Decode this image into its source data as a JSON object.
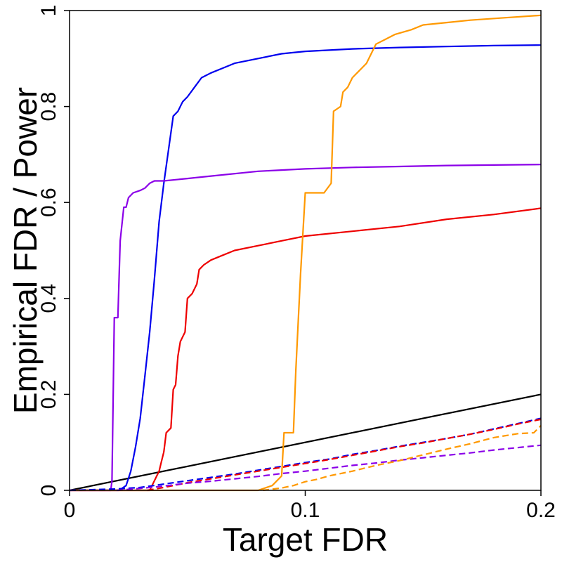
{
  "chart_data": {
    "type": "line",
    "xlabel": "Target FDR",
    "ylabel": "Empirical FDR / Power",
    "xlim": [
      0,
      0.2
    ],
    "ylim": [
      0,
      1
    ],
    "x_ticks": [
      {
        "value": 0,
        "label": "0"
      },
      {
        "value": 0.1,
        "label": "0.1"
      },
      {
        "value": 0.2,
        "label": "0.2"
      }
    ],
    "y_ticks": [
      {
        "value": 0,
        "label": "0"
      },
      {
        "value": 0.2,
        "label": "0.2"
      },
      {
        "value": 0.4,
        "label": "0.4"
      },
      {
        "value": 0.6,
        "label": "0.6"
      },
      {
        "value": 0.8,
        "label": "0.8"
      },
      {
        "value": 1,
        "label": "1"
      }
    ],
    "grid": false,
    "series": [
      {
        "color": "#000000",
        "style": "solid",
        "points": [
          [
            0,
            0
          ],
          [
            0.2,
            0.2
          ]
        ]
      },
      {
        "color": "#0000ee",
        "style": "solid",
        "points": [
          [
            0,
            0
          ],
          [
            0.021,
            0.0
          ],
          [
            0.024,
            0.01
          ],
          [
            0.026,
            0.04
          ],
          [
            0.028,
            0.09
          ],
          [
            0.03,
            0.15
          ],
          [
            0.032,
            0.24
          ],
          [
            0.034,
            0.33
          ],
          [
            0.036,
            0.44
          ],
          [
            0.038,
            0.56
          ],
          [
            0.04,
            0.64
          ],
          [
            0.042,
            0.71
          ],
          [
            0.044,
            0.78
          ],
          [
            0.046,
            0.79
          ],
          [
            0.048,
            0.81
          ],
          [
            0.05,
            0.82
          ],
          [
            0.053,
            0.84
          ],
          [
            0.056,
            0.86
          ],
          [
            0.06,
            0.87
          ],
          [
            0.065,
            0.88
          ],
          [
            0.07,
            0.89
          ],
          [
            0.08,
            0.9
          ],
          [
            0.09,
            0.91
          ],
          [
            0.1,
            0.915
          ],
          [
            0.12,
            0.92
          ],
          [
            0.14,
            0.923
          ],
          [
            0.16,
            0.925
          ],
          [
            0.18,
            0.927
          ],
          [
            0.2,
            0.928
          ]
        ]
      },
      {
        "color": "#8b00e8",
        "style": "solid",
        "points": [
          [
            0,
            0
          ],
          [
            0.0175,
            0.0
          ],
          [
            0.018,
            0.02
          ],
          [
            0.019,
            0.36
          ],
          [
            0.0205,
            0.36
          ],
          [
            0.0215,
            0.52
          ],
          [
            0.023,
            0.59
          ],
          [
            0.024,
            0.59
          ],
          [
            0.025,
            0.61
          ],
          [
            0.027,
            0.62
          ],
          [
            0.03,
            0.625
          ],
          [
            0.032,
            0.63
          ],
          [
            0.034,
            0.64
          ],
          [
            0.036,
            0.645
          ],
          [
            0.04,
            0.645
          ],
          [
            0.05,
            0.65
          ],
          [
            0.06,
            0.655
          ],
          [
            0.08,
            0.665
          ],
          [
            0.1,
            0.67
          ],
          [
            0.12,
            0.673
          ],
          [
            0.14,
            0.675
          ],
          [
            0.16,
            0.677
          ],
          [
            0.18,
            0.678
          ],
          [
            0.2,
            0.679
          ]
        ]
      },
      {
        "color": "#ee0000",
        "style": "solid",
        "points": [
          [
            0,
            0
          ],
          [
            0.034,
            0.0
          ],
          [
            0.036,
            0.02
          ],
          [
            0.038,
            0.04
          ],
          [
            0.039,
            0.06
          ],
          [
            0.04,
            0.08
          ],
          [
            0.041,
            0.12
          ],
          [
            0.043,
            0.13
          ],
          [
            0.044,
            0.21
          ],
          [
            0.045,
            0.22
          ],
          [
            0.046,
            0.28
          ],
          [
            0.047,
            0.31
          ],
          [
            0.049,
            0.33
          ],
          [
            0.05,
            0.4
          ],
          [
            0.052,
            0.41
          ],
          [
            0.054,
            0.43
          ],
          [
            0.055,
            0.46
          ],
          [
            0.057,
            0.47
          ],
          [
            0.06,
            0.48
          ],
          [
            0.065,
            0.49
          ],
          [
            0.07,
            0.5
          ],
          [
            0.08,
            0.51
          ],
          [
            0.09,
            0.52
          ],
          [
            0.1,
            0.53
          ],
          [
            0.12,
            0.54
          ],
          [
            0.14,
            0.55
          ],
          [
            0.16,
            0.565
          ],
          [
            0.18,
            0.575
          ],
          [
            0.2,
            0.588
          ]
        ]
      },
      {
        "color": "#ff9900",
        "style": "solid",
        "points": [
          [
            0,
            0
          ],
          [
            0.08,
            0.0
          ],
          [
            0.086,
            0.01
          ],
          [
            0.09,
            0.03
          ],
          [
            0.091,
            0.12
          ],
          [
            0.095,
            0.12
          ],
          [
            0.096,
            0.25
          ],
          [
            0.098,
            0.45
          ],
          [
            0.1,
            0.62
          ],
          [
            0.108,
            0.62
          ],
          [
            0.111,
            0.64
          ],
          [
            0.112,
            0.79
          ],
          [
            0.115,
            0.8
          ],
          [
            0.116,
            0.83
          ],
          [
            0.118,
            0.84
          ],
          [
            0.12,
            0.86
          ],
          [
            0.122,
            0.87
          ],
          [
            0.124,
            0.88
          ],
          [
            0.126,
            0.89
          ],
          [
            0.128,
            0.91
          ],
          [
            0.13,
            0.93
          ],
          [
            0.134,
            0.94
          ],
          [
            0.138,
            0.95
          ],
          [
            0.145,
            0.96
          ],
          [
            0.15,
            0.97
          ],
          [
            0.16,
            0.975
          ],
          [
            0.17,
            0.98
          ],
          [
            0.185,
            0.985
          ],
          [
            0.2,
            0.99
          ]
        ]
      },
      {
        "color": "#0000ee",
        "style": "dashed",
        "points": [
          [
            0,
            0
          ],
          [
            0.02,
            0.003
          ],
          [
            0.03,
            0.006
          ],
          [
            0.04,
            0.013
          ],
          [
            0.05,
            0.02
          ],
          [
            0.06,
            0.027
          ],
          [
            0.07,
            0.034
          ],
          [
            0.08,
            0.042
          ],
          [
            0.09,
            0.05
          ],
          [
            0.1,
            0.058
          ],
          [
            0.11,
            0.065
          ],
          [
            0.12,
            0.075
          ],
          [
            0.13,
            0.083
          ],
          [
            0.14,
            0.092
          ],
          [
            0.15,
            0.1
          ],
          [
            0.16,
            0.108
          ],
          [
            0.17,
            0.117
          ],
          [
            0.18,
            0.128
          ],
          [
            0.19,
            0.139
          ],
          [
            0.2,
            0.15
          ]
        ]
      },
      {
        "color": "#ee0000",
        "style": "dashed",
        "points": [
          [
            0.033,
            0.0
          ],
          [
            0.04,
            0.006
          ],
          [
            0.05,
            0.016
          ],
          [
            0.06,
            0.024
          ],
          [
            0.07,
            0.032
          ],
          [
            0.08,
            0.04
          ],
          [
            0.09,
            0.048
          ],
          [
            0.1,
            0.056
          ],
          [
            0.11,
            0.064
          ],
          [
            0.12,
            0.073
          ],
          [
            0.13,
            0.082
          ],
          [
            0.14,
            0.091
          ],
          [
            0.15,
            0.099
          ],
          [
            0.16,
            0.108
          ],
          [
            0.17,
            0.117
          ],
          [
            0.18,
            0.127
          ],
          [
            0.19,
            0.138
          ],
          [
            0.2,
            0.148
          ]
        ]
      },
      {
        "color": "#8b00e8",
        "style": "dashed",
        "points": [
          [
            0.02,
            0.0
          ],
          [
            0.03,
            0.004
          ],
          [
            0.04,
            0.009
          ],
          [
            0.05,
            0.015
          ],
          [
            0.06,
            0.019
          ],
          [
            0.07,
            0.024
          ],
          [
            0.08,
            0.029
          ],
          [
            0.09,
            0.035
          ],
          [
            0.1,
            0.04
          ],
          [
            0.11,
            0.046
          ],
          [
            0.12,
            0.052
          ],
          [
            0.13,
            0.057
          ],
          [
            0.14,
            0.063
          ],
          [
            0.15,
            0.068
          ],
          [
            0.16,
            0.073
          ],
          [
            0.17,
            0.078
          ],
          [
            0.18,
            0.084
          ],
          [
            0.19,
            0.089
          ],
          [
            0.2,
            0.094
          ]
        ]
      },
      {
        "color": "#ff9900",
        "style": "dashed",
        "points": [
          [
            0.082,
            0.0
          ],
          [
            0.09,
            0.005
          ],
          [
            0.095,
            0.01
          ],
          [
            0.1,
            0.018
          ],
          [
            0.105,
            0.023
          ],
          [
            0.11,
            0.03
          ],
          [
            0.12,
            0.04
          ],
          [
            0.13,
            0.052
          ],
          [
            0.14,
            0.062
          ],
          [
            0.15,
            0.074
          ],
          [
            0.16,
            0.086
          ],
          [
            0.17,
            0.097
          ],
          [
            0.18,
            0.11
          ],
          [
            0.19,
            0.118
          ],
          [
            0.197,
            0.12
          ],
          [
            0.2,
            0.135
          ]
        ]
      }
    ]
  }
}
